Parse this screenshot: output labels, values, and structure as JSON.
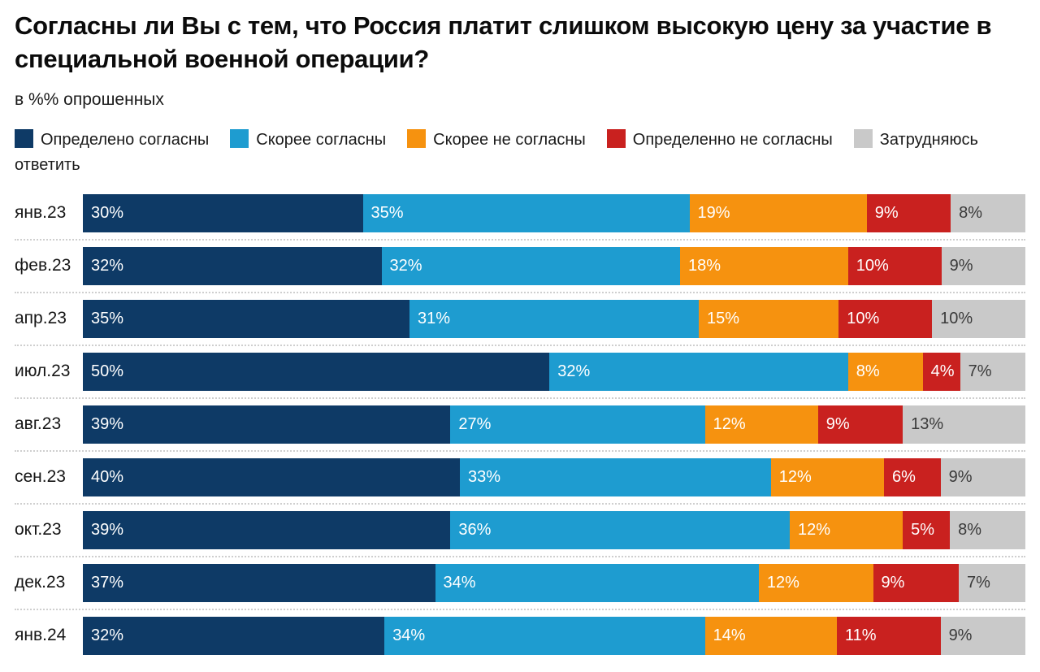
{
  "title": "Согласны ли Вы с тем, что Россия платит слишком высокую цену за участие в специальной военной операции?",
  "subtitle": "в %% опрошенных",
  "chart_data": {
    "type": "bar",
    "variant": "stacked-horizontal",
    "title": "Согласны ли Вы с тем, что Россия платит слишком высокую цену за участие в специальной военной операции?",
    "subtitle": "в %% опрошенных",
    "unit": "% опрошенных",
    "value_suffix": "%",
    "legend_position": "top",
    "grid": false,
    "categories": [
      "янв.23",
      "фев.23",
      "апр.23",
      "июл.23",
      "авг.23",
      "сен.23",
      "окт.23",
      "дек.23",
      "янв.24"
    ],
    "series": [
      {
        "name": "Определено согласны",
        "color": "#0e3a66",
        "label_color": "#ffffff",
        "values": [
          30,
          32,
          35,
          50,
          39,
          40,
          39,
          37,
          32
        ]
      },
      {
        "name": "Скорее согласны",
        "color": "#1e9cd0",
        "label_color": "#ffffff",
        "values": [
          35,
          32,
          31,
          32,
          27,
          33,
          36,
          34,
          34
        ]
      },
      {
        "name": "Скорее не согласны",
        "color": "#f6920f",
        "label_color": "#ffffff",
        "values": [
          19,
          18,
          15,
          8,
          12,
          12,
          12,
          12,
          14
        ]
      },
      {
        "name": "Определенно не согласны",
        "color": "#c9211f",
        "label_color": "#ffffff",
        "values": [
          9,
          10,
          10,
          4,
          9,
          6,
          5,
          9,
          11
        ]
      },
      {
        "name": "Затрудняюсь ответить",
        "color": "#c9c9c9",
        "label_color": "#3a3a3a",
        "values": [
          8,
          9,
          10,
          7,
          13,
          9,
          8,
          7,
          9
        ]
      }
    ]
  }
}
